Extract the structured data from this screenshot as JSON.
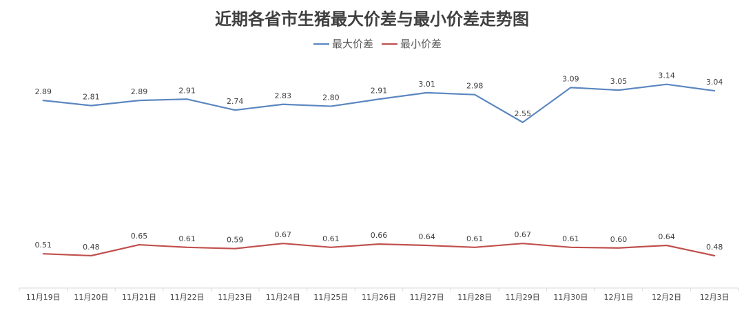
{
  "chart_data": {
    "type": "line",
    "title": "近期各省市生猪最大价差与最小价差走势图",
    "xlabel": "",
    "ylabel": "",
    "categories": [
      "11月19日",
      "11月20日",
      "11月21日",
      "11月22日",
      "11月23日",
      "11月24日",
      "11月25日",
      "11月26日",
      "11月27日",
      "11月28日",
      "11月29日",
      "11月30日",
      "12月1日",
      "12月2日",
      "12月3日"
    ],
    "series": [
      {
        "name": "最大价差",
        "color": "#5b87c0",
        "values": [
          2.89,
          2.81,
          2.89,
          2.91,
          2.74,
          2.83,
          2.8,
          2.91,
          3.01,
          2.98,
          2.55,
          3.09,
          3.05,
          3.14,
          3.04
        ],
        "labels": [
          "2.89",
          "2.81",
          "2.89",
          "2.91",
          "2.74",
          "2.83",
          "2.80",
          "2.91",
          "3.01",
          "2.98",
          "2.55",
          "3.09",
          "3.05",
          "3.14",
          "3.04"
        ]
      },
      {
        "name": "最小价差",
        "color": "#c0504d",
        "values": [
          0.51,
          0.48,
          0.65,
          0.61,
          0.59,
          0.67,
          0.61,
          0.66,
          0.64,
          0.61,
          0.67,
          0.61,
          0.6,
          0.64,
          0.48
        ],
        "labels": [
          "0.51",
          "0.48",
          "0.65",
          "0.61",
          "0.59",
          "0.67",
          "0.61",
          "0.66",
          "0.64",
          "0.61",
          "0.67",
          "0.61",
          "0.60",
          "0.64",
          "0.48"
        ]
      }
    ],
    "ylim": [
      0,
      3.6
    ],
    "grid": false,
    "legend_position": "top-center",
    "axis_color": "#d9d9d9"
  }
}
